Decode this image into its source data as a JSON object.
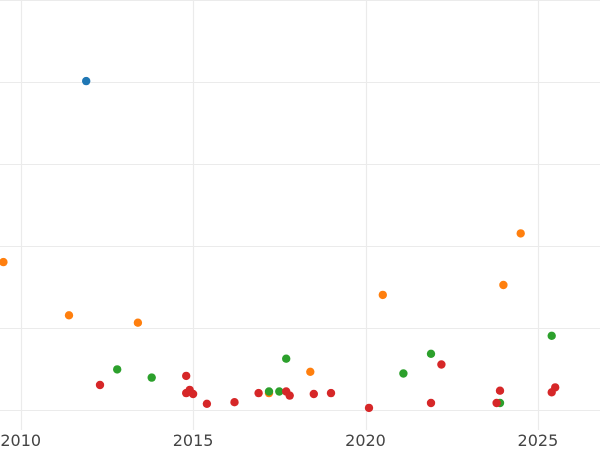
{
  "chart_data": {
    "type": "scatter",
    "title": "",
    "xlabel": "",
    "ylabel": "",
    "xlim": [
      2009.4,
      2026.8
    ],
    "ylim": [
      0,
      525
    ],
    "x_ticks": [
      2010,
      2015,
      2020,
      2025
    ],
    "x_tick_labels": [
      "2010",
      "2015",
      "2020",
      "2025"
    ],
    "y_gridlines": [
      25,
      125,
      225,
      325,
      425,
      525
    ],
    "grid": true,
    "legend": "none",
    "series": [
      {
        "color": "#1f77b4",
        "points": [
          [
            2011.9,
            426
          ]
        ]
      },
      {
        "color": "#ff7f0e",
        "points": [
          [
            2009.5,
            205
          ],
          [
            2011.4,
            140
          ],
          [
            2013.4,
            131
          ],
          [
            2017.2,
            45
          ],
          [
            2018.4,
            71
          ],
          [
            2020.5,
            165
          ],
          [
            2024.0,
            177
          ],
          [
            2024.5,
            240
          ]
        ]
      },
      {
        "color": "#2ca02c",
        "points": [
          [
            2012.8,
            74
          ],
          [
            2013.8,
            64
          ],
          [
            2017.2,
            47
          ],
          [
            2017.5,
            47
          ],
          [
            2017.7,
            87
          ],
          [
            2021.1,
            69
          ],
          [
            2021.9,
            93
          ],
          [
            2023.9,
            33
          ],
          [
            2025.4,
            115
          ]
        ]
      },
      {
        "color": "#d62728",
        "points": [
          [
            2012.3,
            55
          ],
          [
            2014.8,
            66
          ],
          [
            2014.8,
            45
          ],
          [
            2014.9,
            49
          ],
          [
            2015.0,
            44
          ],
          [
            2015.4,
            32
          ],
          [
            2016.2,
            34
          ],
          [
            2016.9,
            45
          ],
          [
            2017.7,
            47
          ],
          [
            2017.8,
            42
          ],
          [
            2018.5,
            44
          ],
          [
            2019.0,
            45
          ],
          [
            2020.1,
            27
          ],
          [
            2021.9,
            33
          ],
          [
            2022.2,
            80
          ],
          [
            2023.8,
            33
          ],
          [
            2023.9,
            48
          ],
          [
            2025.4,
            46
          ],
          [
            2025.5,
            52
          ]
        ]
      }
    ]
  }
}
